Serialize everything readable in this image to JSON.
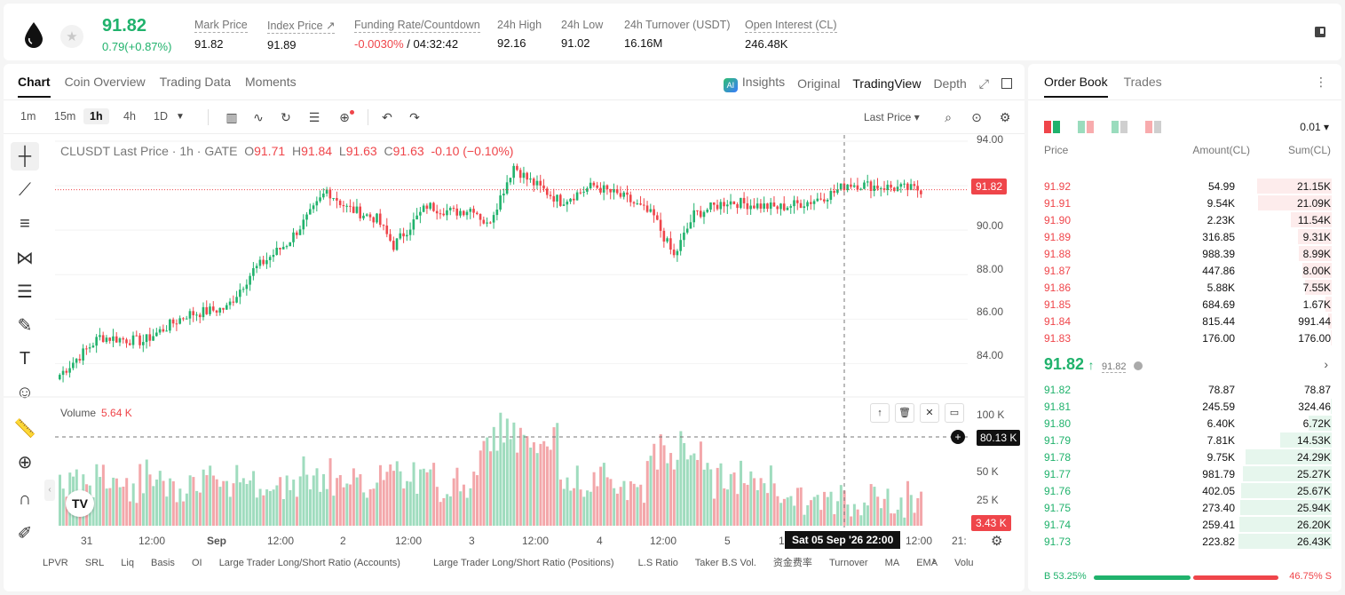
{
  "header": {
    "price": "91.82",
    "change": "0.79(+0.87%)",
    "stats": [
      {
        "label": "Mark Price",
        "value": "91.82"
      },
      {
        "label": "Index Price ↗",
        "value": "91.89"
      },
      {
        "label": "Funding Rate/Countdown",
        "value_neg": "-0.0030%",
        "value": " / 04:32:42"
      },
      {
        "label": "24h High",
        "value": "92.16"
      },
      {
        "label": "24h Low",
        "value": "91.02"
      },
      {
        "label": "24h Turnover (USDT)",
        "value": "16.16M"
      },
      {
        "label": "Open Interest (CL)",
        "value": "246.48K"
      }
    ]
  },
  "chart_tabs": [
    "Chart",
    "Coin Overview",
    "Trading Data",
    "Moments"
  ],
  "chart_tabs_right": {
    "insights": "Insights",
    "original": "Original",
    "tradingview": "TradingView",
    "depth": "Depth"
  },
  "timeframes": [
    "1m",
    "15m",
    "1h",
    "4h",
    "1D"
  ],
  "price_type": "Last Price ▾",
  "legend": {
    "symbol": "CLUSDT Last Price · 1h · GATE",
    "o_label": "O",
    "o": "91.71",
    "h_label": "H",
    "h": "91.84",
    "l_label": "L",
    "l": "91.63",
    "c_label": "C",
    "c": "91.63",
    "chg": "-0.10 (−0.10%)"
  },
  "volume_legend": {
    "label": "Volume",
    "value": "5.64 K"
  },
  "price_tag": "91.82",
  "vol_tag": "80.13 K",
  "vol_tag2": "3.43 K",
  "date_tag": "Sat 05 Sep '26   22:00",
  "y_ticks": [
    "94.00",
    "92.00",
    "90.00",
    "88.00",
    "86.00",
    "84.00"
  ],
  "vol_ticks": [
    "100 K",
    "50 K",
    "25 K"
  ],
  "x_ticks": [
    "31",
    "12:00",
    "Sep",
    "12:00",
    "2",
    "12:00",
    "3",
    "12:00",
    "4",
    "12:00",
    "5",
    "1",
    "12:00",
    "21:"
  ],
  "indicators": [
    "LPVR",
    "SRL",
    "Liq",
    "Basis",
    "OI",
    "Large Trader Long/Short Ratio (Accounts)",
    "Large Trader Long/Short Ratio (Positions)",
    "L.S Ratio",
    "Taker B.S Vol.",
    "资金费率",
    "Turnover",
    "MA",
    "EMA",
    "Volu"
  ],
  "chart_data": {
    "type": "candlestick",
    "title": "CLUSDT Last Price · 1h · GATE",
    "ylim": [
      82.5,
      94.2
    ],
    "vol_ylim": [
      0,
      110000
    ],
    "candles": [],
    "volume_ticks": [
      100000,
      50000,
      25000
    ]
  },
  "orderbook": {
    "tabs": [
      "Order Book",
      "Trades"
    ],
    "precision": "0.01 ▾",
    "headers": [
      "Price",
      "Amount(CL)",
      "Sum(CL)"
    ],
    "asks": [
      {
        "p": "91.92",
        "a": "54.99",
        "s": "21.15K",
        "d": 0.8
      },
      {
        "p": "91.91",
        "a": "9.54K",
        "s": "21.09K",
        "d": 0.79
      },
      {
        "p": "91.90",
        "a": "2.23K",
        "s": "11.54K",
        "d": 0.44
      },
      {
        "p": "91.89",
        "a": "316.85",
        "s": "9.31K",
        "d": 0.36
      },
      {
        "p": "91.88",
        "a": "988.39",
        "s": "8.99K",
        "d": 0.35
      },
      {
        "p": "91.87",
        "a": "447.86",
        "s": "8.00K",
        "d": 0.31
      },
      {
        "p": "91.86",
        "a": "5.88K",
        "s": "7.55K",
        "d": 0.29
      },
      {
        "p": "91.85",
        "a": "684.69",
        "s": "1.67K",
        "d": 0.07
      },
      {
        "p": "91.84",
        "a": "815.44",
        "s": "991.44",
        "d": 0.04
      },
      {
        "p": "91.83",
        "a": "176.00",
        "s": "176.00",
        "d": 0.01
      }
    ],
    "mid_price": "91.82",
    "mid_mark": "91.82",
    "bids": [
      {
        "p": "91.82",
        "a": "78.87",
        "s": "78.87",
        "d": 0.0
      },
      {
        "p": "91.81",
        "a": "245.59",
        "s": "324.46",
        "d": 0.01
      },
      {
        "p": "91.80",
        "a": "6.40K",
        "s": "6.72K",
        "d": 0.25
      },
      {
        "p": "91.79",
        "a": "7.81K",
        "s": "14.53K",
        "d": 0.55
      },
      {
        "p": "91.78",
        "a": "9.75K",
        "s": "24.29K",
        "d": 0.92
      },
      {
        "p": "91.77",
        "a": "981.79",
        "s": "25.27K",
        "d": 0.95
      },
      {
        "p": "91.76",
        "a": "402.05",
        "s": "25.67K",
        "d": 0.97
      },
      {
        "p": "91.75",
        "a": "273.40",
        "s": "25.94K",
        "d": 0.98
      },
      {
        "p": "91.74",
        "a": "259.41",
        "s": "26.20K",
        "d": 0.99
      },
      {
        "p": "91.73",
        "a": "223.82",
        "s": "26.43K",
        "d": 1.0
      }
    ],
    "buy_ratio": "B 53.25%",
    "sell_ratio": "46.75% S",
    "buy_pct": 53.25
  }
}
